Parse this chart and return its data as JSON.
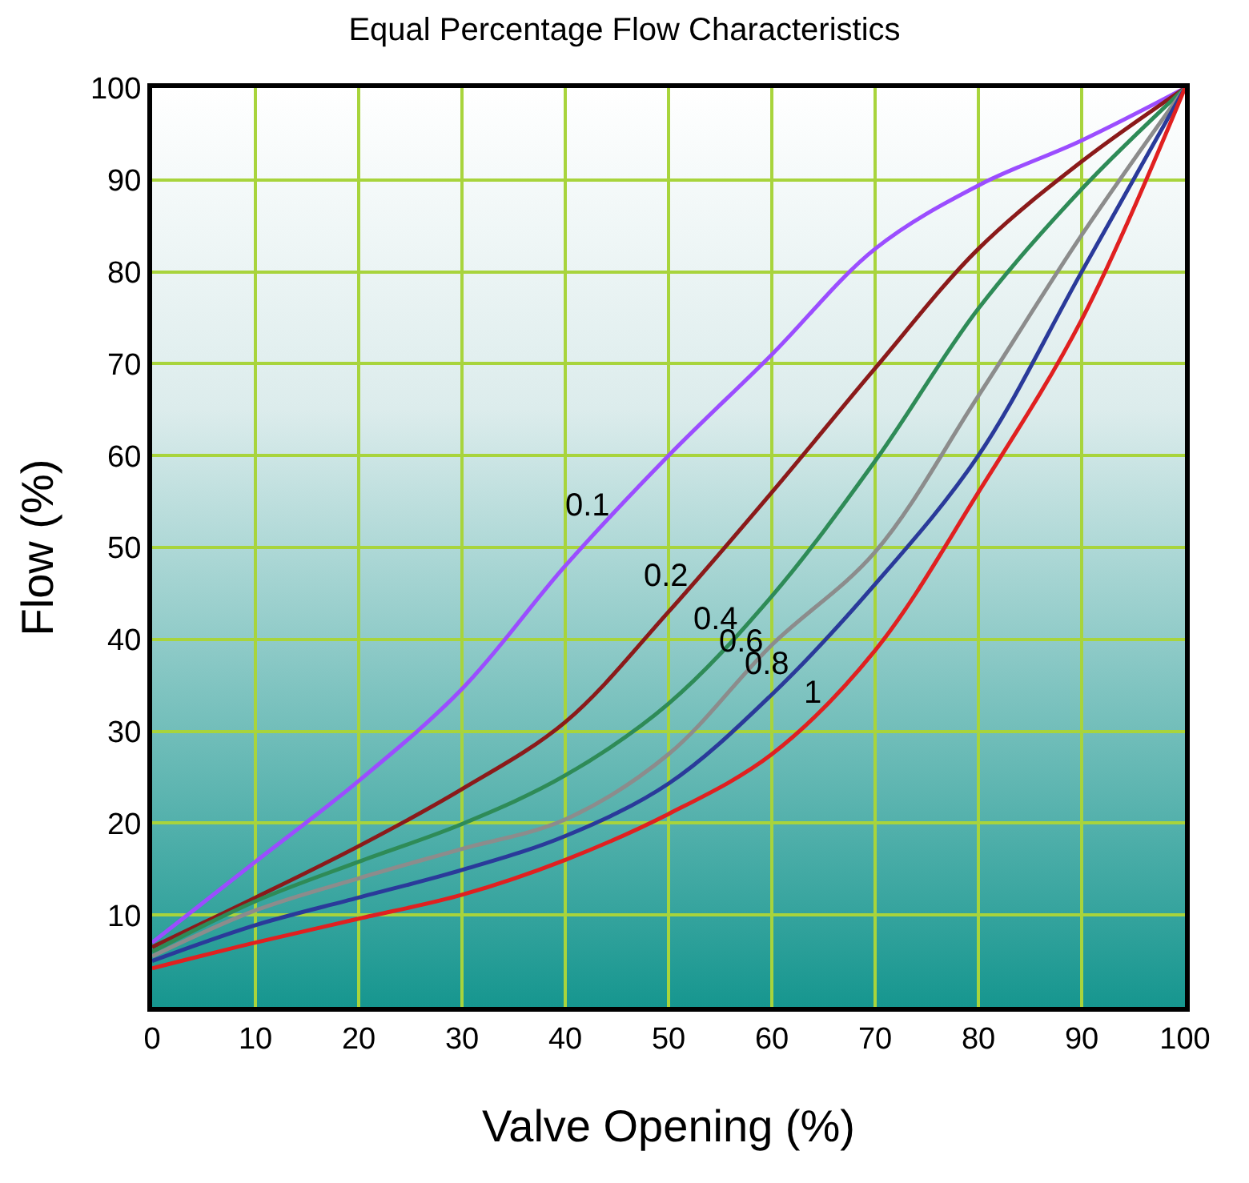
{
  "chart_data": {
    "type": "line",
    "title": "Equal Percentage Flow Characteristics",
    "xlabel": "Valve Opening (%)",
    "ylabel": "Flow (%)",
    "x": [
      0,
      10,
      20,
      30,
      40,
      50,
      60,
      70,
      80,
      90,
      100
    ],
    "series": [
      {
        "name": "0.1",
        "color": "#9b4dff",
        "values": [
          7,
          15.8,
          24.6,
          34.6,
          48,
          60,
          71,
          82.5,
          89.4,
          94.3,
          100
        ]
      },
      {
        "name": "0.2",
        "color": "#8b1a1a",
        "values": [
          6.5,
          11.9,
          17.5,
          23.7,
          31,
          43,
          56,
          69.5,
          82.5,
          92,
          100
        ]
      },
      {
        "name": "0.4",
        "color": "#2e8b57",
        "values": [
          6,
          11.5,
          15.8,
          19.9,
          25.2,
          33,
          44.7,
          59.4,
          76,
          89,
          100
        ]
      },
      {
        "name": "0.6",
        "color": "#8c8c8c",
        "values": [
          5.5,
          10.5,
          14,
          17.2,
          20.4,
          27.5,
          39.4,
          49.5,
          66.5,
          84,
          100
        ]
      },
      {
        "name": "0.8",
        "color": "#2a3a9a",
        "values": [
          5,
          8.9,
          11.9,
          14.9,
          18.6,
          24.3,
          34,
          46,
          60,
          80,
          100
        ]
      },
      {
        "name": "1",
        "color": "#e02020",
        "values": [
          4.2,
          7,
          9.6,
          12.2,
          16,
          21,
          27.5,
          38.8,
          56,
          74.8,
          100
        ]
      }
    ],
    "xlim": [
      0,
      100
    ],
    "xticks": [
      0,
      10,
      20,
      30,
      40,
      50,
      60,
      70,
      80,
      90,
      100
    ],
    "ylim": [
      0,
      100
    ],
    "yticks": [
      10,
      20,
      30,
      40,
      50,
      60,
      70,
      80,
      90,
      100
    ],
    "grid": true,
    "marker": "none",
    "line_style": "solid"
  }
}
